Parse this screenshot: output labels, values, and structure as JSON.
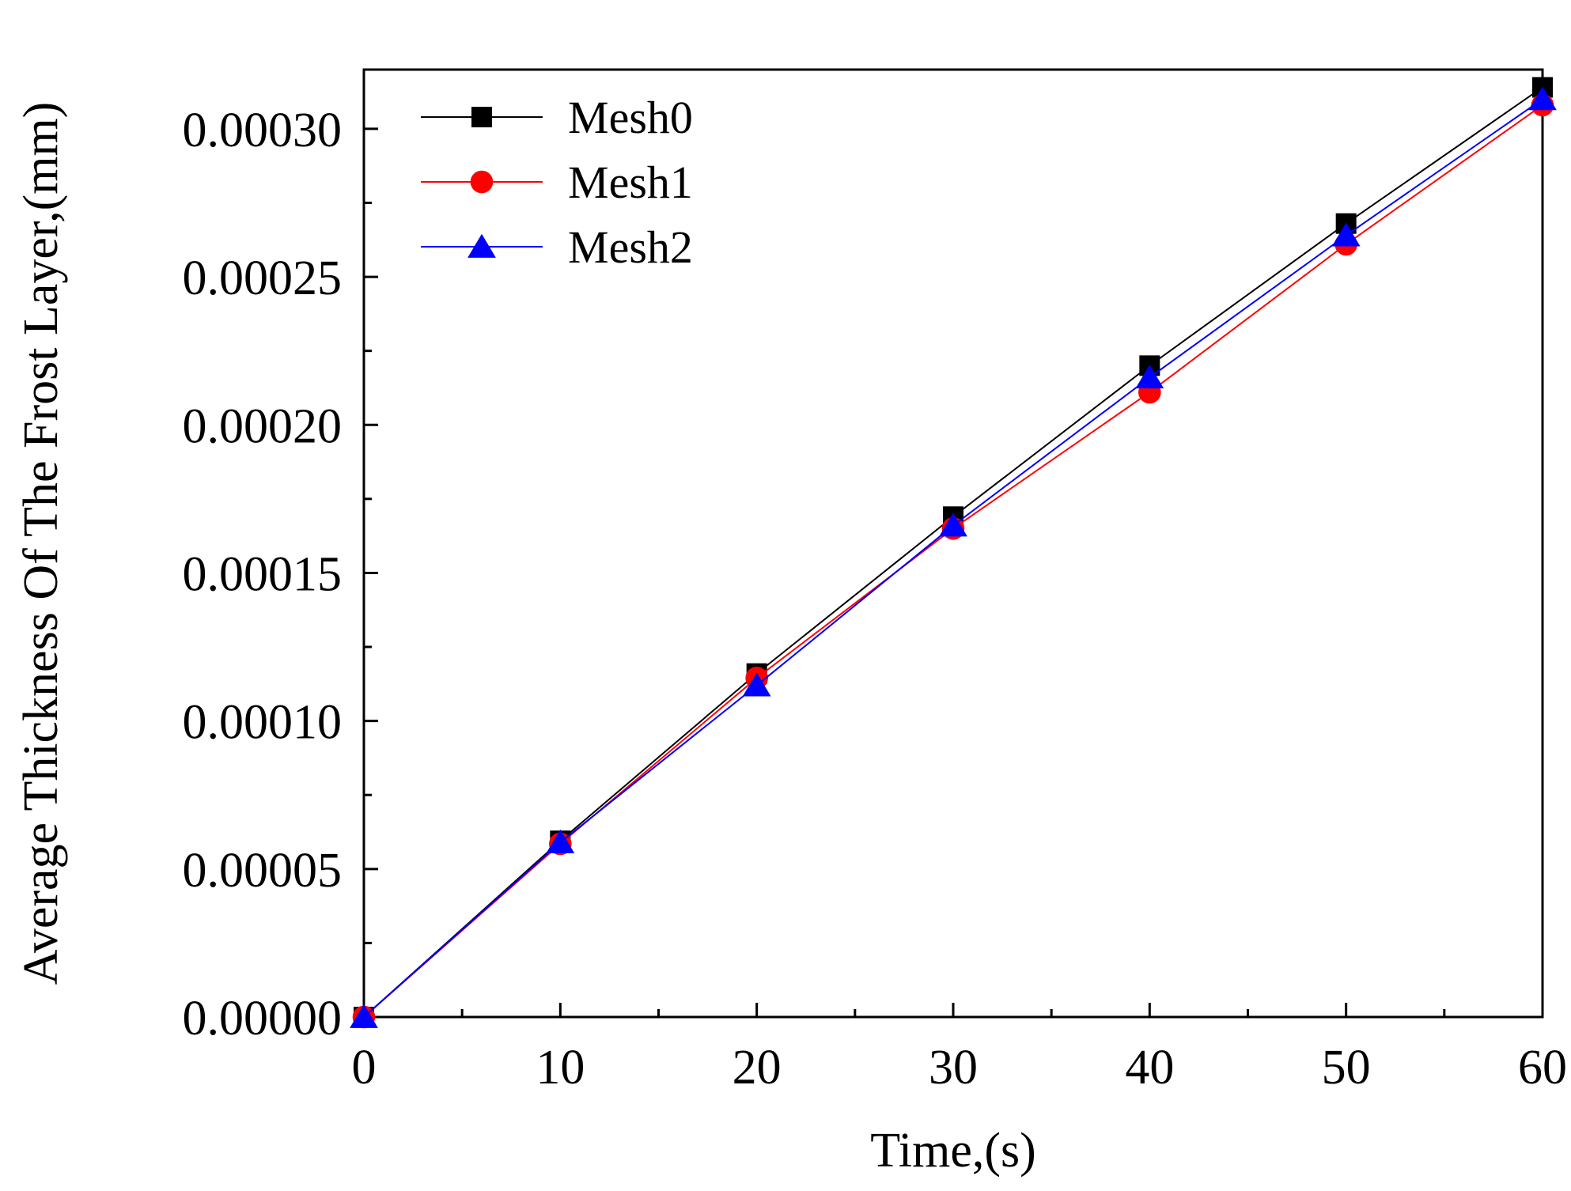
{
  "chart_data": {
    "type": "line",
    "title": "",
    "xlabel": "Time,(s)",
    "ylabel": "Average  Thickness Of The Frost Layer,(mm)",
    "xlim": [
      0,
      60
    ],
    "ylim": [
      0,
      0.00032
    ],
    "x_ticks": [
      0,
      10,
      20,
      30,
      40,
      50,
      60
    ],
    "x_tick_labels": [
      "0",
      "10",
      "20",
      "30",
      "40",
      "50",
      "60"
    ],
    "y_ticks": [
      0,
      5e-05,
      0.0001,
      0.00015,
      0.0002,
      0.00025,
      0.0003
    ],
    "y_tick_labels": [
      "0.00000",
      "0.00005",
      "0.00010",
      "0.00015",
      "0.00020",
      "0.00025",
      "0.00030"
    ],
    "grid": false,
    "legend_position": "top-left",
    "x": [
      0,
      10,
      20,
      30,
      40,
      50,
      60
    ],
    "series": [
      {
        "name": "Mesh0",
        "color": "#000000",
        "marker": "square",
        "values": [
          0,
          5.95e-05,
          0.000116,
          0.000169,
          0.00022,
          0.000268,
          0.000314
        ]
      },
      {
        "name": "Mesh1",
        "color": "#ff0000",
        "marker": "circle",
        "values": [
          0,
          5.85e-05,
          0.0001145,
          0.000165,
          0.000211,
          0.000261,
          0.000308
        ]
      },
      {
        "name": "Mesh2",
        "color": "#0000ff",
        "marker": "triangle",
        "values": [
          0,
          5.9e-05,
          0.000112,
          0.000166,
          0.000216,
          0.000264,
          0.00031
        ]
      }
    ]
  }
}
